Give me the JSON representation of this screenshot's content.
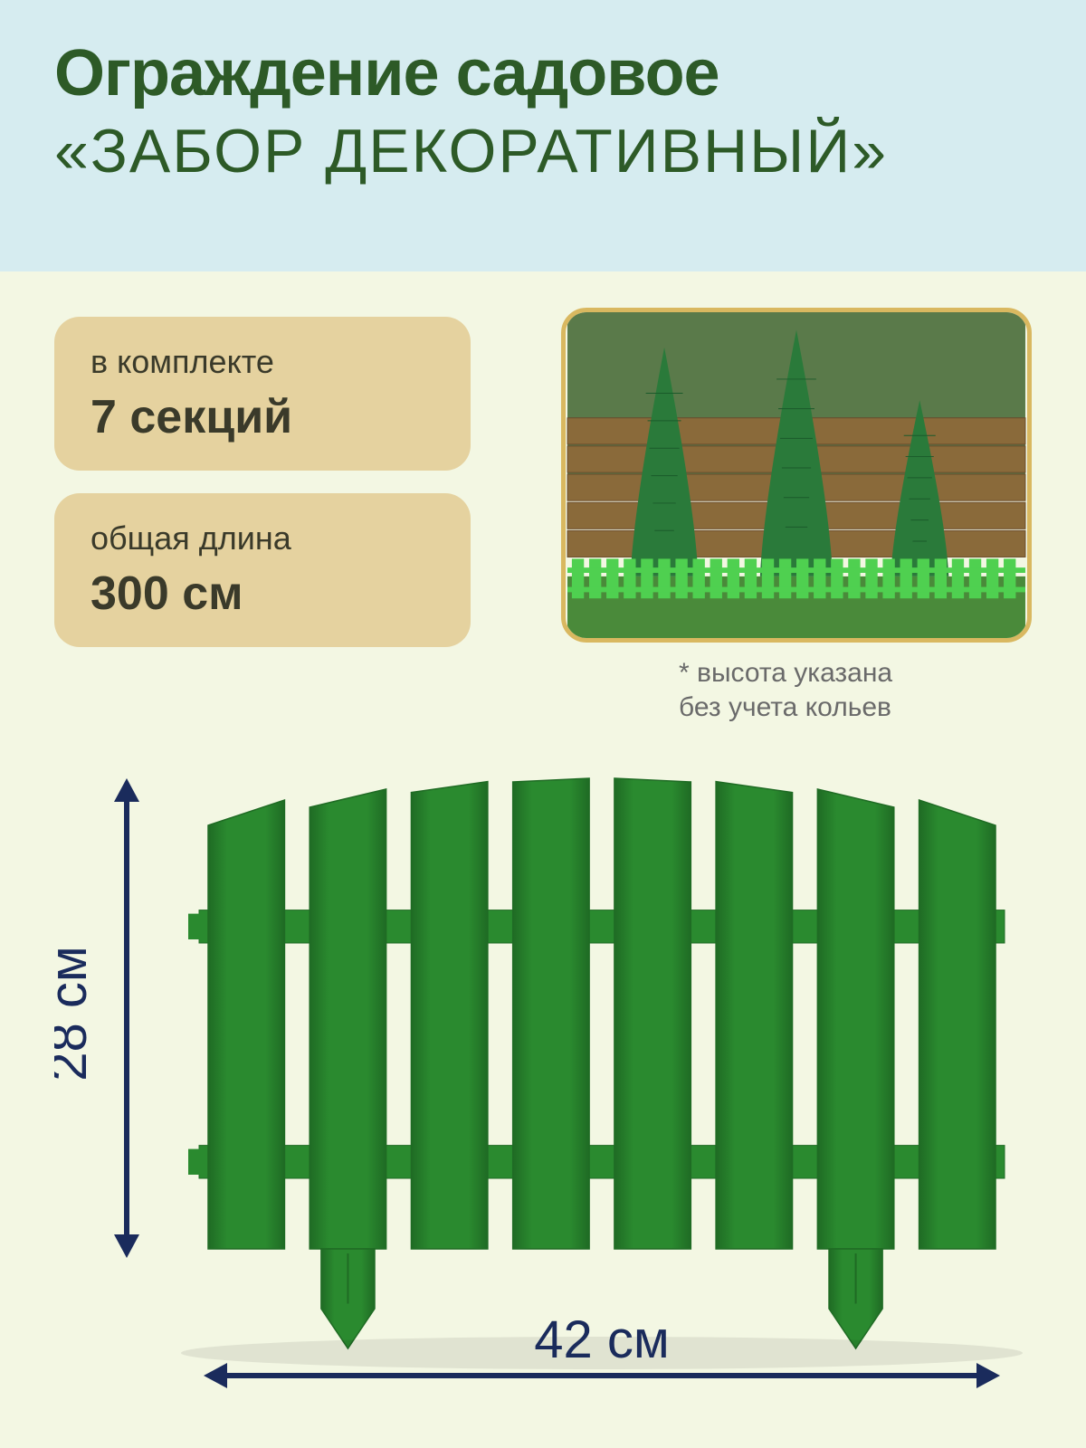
{
  "colors": {
    "header_bg": "#d6ecf0",
    "lower_bg": "#f3f7e3",
    "title": "#2d5a27",
    "pill_bg": "#e5d29f",
    "pill_text": "#3a3a2a",
    "note_text": "#6a6a6a",
    "frame_border": "#d9b860",
    "fence_green": "#2a8a2f",
    "fence_dark": "#1f6b24",
    "dim_color": "#1a2b5c",
    "bright_fence": "#4fd050",
    "wood": "#8a6a3a",
    "grass": "#4a8a3a",
    "tree": "#2a7a3a"
  },
  "title_line1": "Ограждение садовое",
  "title_line2": "«ЗАБОР ДЕКОРАТИВНЫЙ»",
  "pill1": {
    "label": "в комплекте",
    "value": "7 секций"
  },
  "pill2": {
    "label": "общая длина",
    "value": "300 см"
  },
  "note": "* высота указана\n  без учета кольев",
  "dim_height": "28 см",
  "dim_width": "42 см",
  "fence": {
    "slat_count": 8,
    "arch_heights": [
      0.8,
      0.9,
      0.97,
      1.0,
      1.0,
      0.97,
      0.9,
      0.8
    ],
    "rail_top_y": 0.28,
    "rail_bot_y": 0.78,
    "rail_h": 0.07,
    "slat_w": 0.085,
    "gap": 0.028,
    "stake_positions": [
      1,
      6
    ]
  },
  "photo_fence_slats": 26
}
